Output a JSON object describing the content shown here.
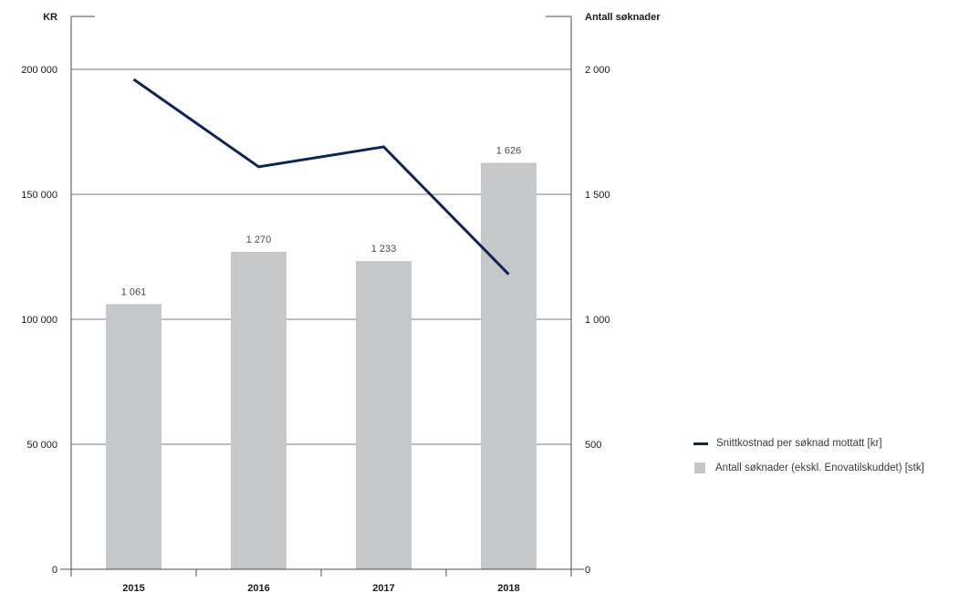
{
  "colors": {
    "line": "#0d2458",
    "bar": "#c6c7c9",
    "grid": "#4d4d4d",
    "text": "#1a1a1a"
  },
  "chart_data": {
    "type": "bar",
    "title": "",
    "categories": [
      "2015",
      "2016",
      "2017",
      "2018"
    ],
    "left_axis": {
      "title": "KR",
      "ylim": [
        0,
        200000
      ],
      "ticks": [
        0,
        50000,
        100000,
        150000,
        200000
      ],
      "tick_labels": [
        "0",
        "50 000",
        "100 000",
        "150 000",
        "200 000"
      ]
    },
    "right_axis": {
      "title": "Antall søknader",
      "ylim": [
        0,
        2000
      ],
      "ticks": [
        0,
        500,
        1000,
        1500,
        2000
      ],
      "tick_labels": [
        "0",
        "500",
        "1 000",
        "1 500",
        "2 000"
      ]
    },
    "series": [
      {
        "name": "Antall søknader (ekskl. Enovatilskuddet) [stk]",
        "type": "bar",
        "axis": "right",
        "values": [
          1061,
          1270,
          1233,
          1626
        ],
        "value_labels": [
          "1 061",
          "1 270",
          "1 233",
          "1 626"
        ]
      },
      {
        "name": "Snittkostnad per søknad mottatt [kr]",
        "type": "line",
        "axis": "left",
        "values": [
          196000,
          161000,
          169000,
          118000
        ]
      }
    ],
    "grid": true,
    "legend_position": "right"
  }
}
